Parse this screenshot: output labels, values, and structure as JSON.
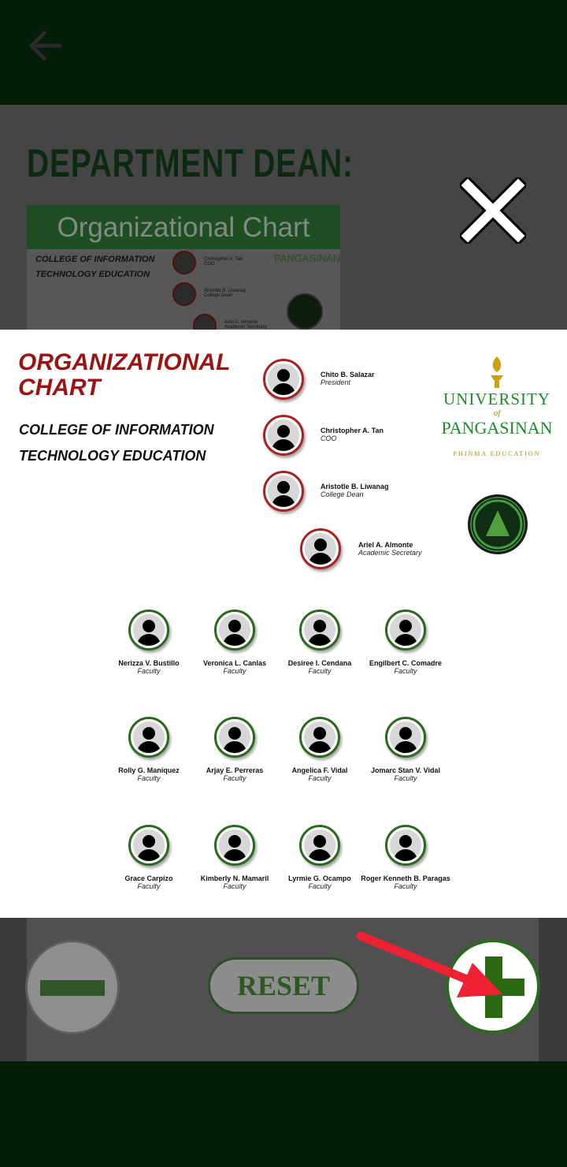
{
  "background": {
    "dept_title": "DEPARTMENT DEAN:",
    "card_header": "Organizational Chart",
    "card_text": [
      "COLLEGE OF INFORMATION",
      "TECHNOLOGY EDUCATION"
    ],
    "names": [
      "Christopher A. Tan",
      "Aristotle B. Liwanag",
      "Ariel A. Almonte"
    ],
    "roles": [
      "COO",
      "College Dean",
      "Academic Secretary"
    ],
    "logo_text": "PANGASINAN"
  },
  "chart": {
    "title": "ORGANIZATIONAL CHART",
    "subtitle": "COLLEGE OF INFORMATION TECHNOLOGY EDUCATION",
    "logo": {
      "line1": "UNIVERSITY",
      "line2": "of",
      "line3": "PANGASINAN",
      "line4": "PHINMA EDUCATION"
    },
    "officers": [
      {
        "name": "Chito B. Salazar",
        "role": "President"
      },
      {
        "name": "Christopher A. Tan",
        "role": "COO"
      },
      {
        "name": "Aristotle B. Liwanag",
        "role": "College Dean"
      },
      {
        "name": "Ariel A. Almonte",
        "role": "Academic Secretary"
      }
    ],
    "faculty": [
      {
        "name": "Nerizza V. Bustillo",
        "role": "Faculty"
      },
      {
        "name": "Veronica L. Canlas",
        "role": "Faculty"
      },
      {
        "name": "Desiree I. Cendana",
        "role": "Faculty"
      },
      {
        "name": "Engilbert C. Comadre",
        "role": "Faculty"
      },
      {
        "name": "Rolly G. Maniquez",
        "role": "Faculty"
      },
      {
        "name": "Arjay E. Perreras",
        "role": "Faculty"
      },
      {
        "name": "Angelica F. Vidal",
        "role": "Faculty"
      },
      {
        "name": "Jomarc Stan V. Vidal",
        "role": "Faculty"
      },
      {
        "name": "Grace Carpizo",
        "role": "Faculty"
      },
      {
        "name": "Kimberly N. Mamaril",
        "role": "Faculty"
      },
      {
        "name": "Lyrmie G. Ocampo",
        "role": "Faculty"
      },
      {
        "name": "Roger Kenneth B. Paragas",
        "role": "Faculty"
      }
    ]
  },
  "controls": {
    "reset_label": "RESET"
  },
  "icons": {
    "back": "arrow-left-icon",
    "close": "close-icon",
    "zoom_out": "minus-icon",
    "zoom_in": "plus-icon",
    "annotation": "red-arrow-icon"
  },
  "colors": {
    "accent_green": "#2b6a12",
    "title_red": "#9b1414",
    "officer_ring": "#a82222",
    "faculty_ring": "#2a6a1d"
  }
}
